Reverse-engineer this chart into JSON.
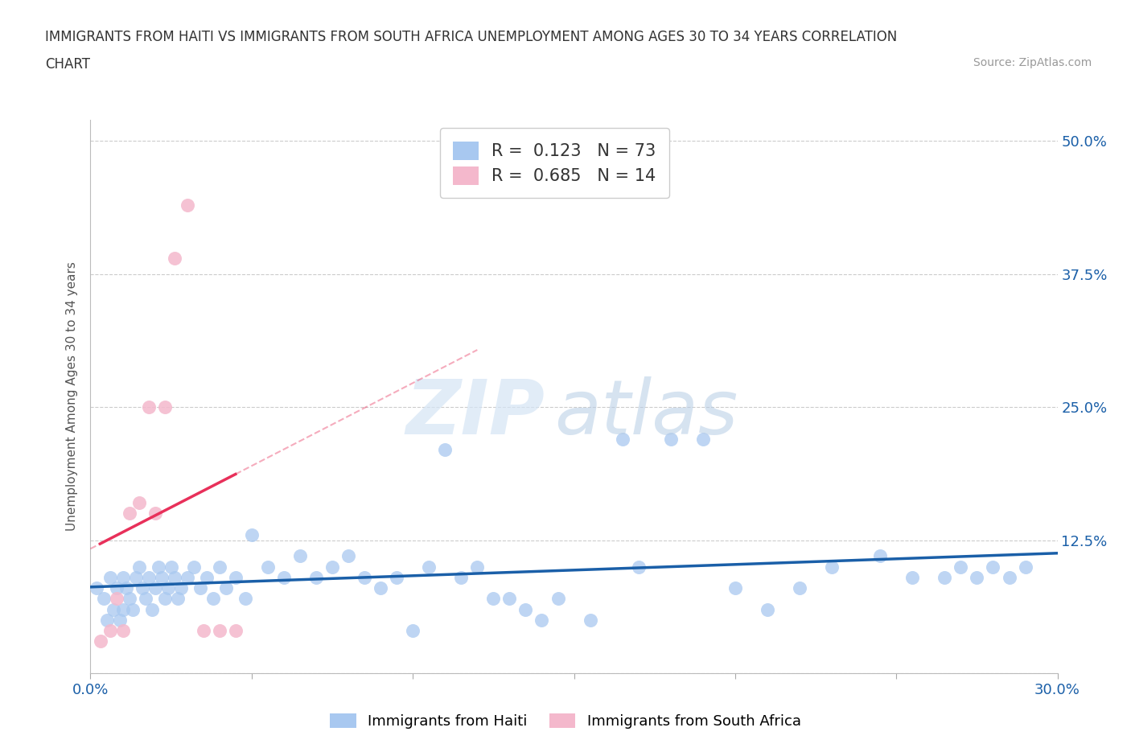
{
  "title_line1": "IMMIGRANTS FROM HAITI VS IMMIGRANTS FROM SOUTH AFRICA UNEMPLOYMENT AMONG AGES 30 TO 34 YEARS CORRELATION",
  "title_line2": "CHART",
  "source": "Source: ZipAtlas.com",
  "ylabel": "Unemployment Among Ages 30 to 34 years",
  "legend_label1": "Immigrants from Haiti",
  "legend_label2": "Immigrants from South Africa",
  "R1": 0.123,
  "N1": 73,
  "R2": 0.685,
  "N2": 14,
  "color1": "#a8c8f0",
  "color2": "#f4b8cc",
  "line_color1": "#1a5fa8",
  "line_color2": "#e8305a",
  "xlim": [
    0.0,
    0.3
  ],
  "ylim": [
    0.0,
    0.52
  ],
  "haiti_x": [
    0.002,
    0.004,
    0.005,
    0.006,
    0.007,
    0.008,
    0.009,
    0.01,
    0.01,
    0.011,
    0.012,
    0.013,
    0.014,
    0.015,
    0.016,
    0.017,
    0.018,
    0.019,
    0.02,
    0.021,
    0.022,
    0.023,
    0.024,
    0.025,
    0.026,
    0.027,
    0.028,
    0.03,
    0.032,
    0.034,
    0.036,
    0.038,
    0.04,
    0.042,
    0.045,
    0.048,
    0.05,
    0.055,
    0.06,
    0.065,
    0.07,
    0.075,
    0.08,
    0.085,
    0.09,
    0.095,
    0.1,
    0.105,
    0.11,
    0.115,
    0.12,
    0.125,
    0.13,
    0.135,
    0.14,
    0.145,
    0.155,
    0.165,
    0.17,
    0.18,
    0.19,
    0.2,
    0.21,
    0.22,
    0.23,
    0.245,
    0.255,
    0.265,
    0.27,
    0.275,
    0.28,
    0.285,
    0.29
  ],
  "haiti_y": [
    0.08,
    0.07,
    0.05,
    0.09,
    0.06,
    0.08,
    0.05,
    0.09,
    0.06,
    0.08,
    0.07,
    0.06,
    0.09,
    0.1,
    0.08,
    0.07,
    0.09,
    0.06,
    0.08,
    0.1,
    0.09,
    0.07,
    0.08,
    0.1,
    0.09,
    0.07,
    0.08,
    0.09,
    0.1,
    0.08,
    0.09,
    0.07,
    0.1,
    0.08,
    0.09,
    0.07,
    0.13,
    0.1,
    0.09,
    0.11,
    0.09,
    0.1,
    0.11,
    0.09,
    0.08,
    0.09,
    0.04,
    0.1,
    0.21,
    0.09,
    0.1,
    0.07,
    0.07,
    0.06,
    0.05,
    0.07,
    0.05,
    0.22,
    0.1,
    0.22,
    0.22,
    0.08,
    0.06,
    0.08,
    0.1,
    0.11,
    0.09,
    0.09,
    0.1,
    0.09,
    0.1,
    0.09,
    0.1
  ],
  "sa_x": [
    0.003,
    0.006,
    0.008,
    0.01,
    0.012,
    0.015,
    0.018,
    0.02,
    0.023,
    0.026,
    0.03,
    0.035,
    0.04,
    0.045
  ],
  "sa_y": [
    0.03,
    0.04,
    0.07,
    0.04,
    0.15,
    0.16,
    0.25,
    0.15,
    0.25,
    0.39,
    0.44,
    0.04,
    0.04,
    0.04
  ]
}
